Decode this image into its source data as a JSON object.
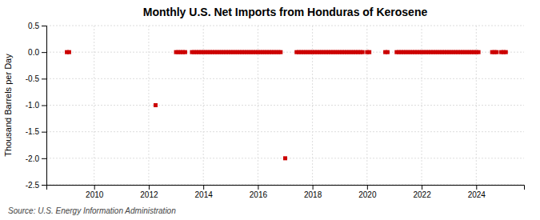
{
  "chart_data": {
    "type": "scatter",
    "title": "Monthly U.S. Net Imports from Honduras of Kerosene",
    "ylabel": "Thousand Barrels per Day",
    "source": "Source: U.S. Energy Information Administration",
    "color": "#cc0000",
    "marker": "square",
    "grid": true,
    "xlim": [
      2008.25,
      2025.75
    ],
    "xticks": [
      2010,
      2012,
      2014,
      2016,
      2018,
      2020,
      2022,
      2024
    ],
    "ylim": [
      -2.5,
      0.5
    ],
    "yticks": [
      0.5,
      {
        "value": 0.0,
        "label": "0.0"
      },
      -0.5,
      {
        "value": -1.0,
        "label": "-1.0"
      },
      -1.5,
      {
        "value": -2.0,
        "label": "-2.0"
      },
      -2.5
    ],
    "x": [
      2009.0,
      2009.083,
      2012.25,
      2013.0,
      2013.083,
      2013.167,
      2013.25,
      2013.333,
      2013.583,
      2013.667,
      2013.75,
      2013.833,
      2013.917,
      2014.0,
      2014.083,
      2014.167,
      2014.25,
      2014.333,
      2014.417,
      2014.5,
      2014.583,
      2014.667,
      2014.75,
      2014.833,
      2014.917,
      2015.0,
      2015.083,
      2015.167,
      2015.25,
      2015.333,
      2015.417,
      2015.5,
      2015.583,
      2015.667,
      2015.75,
      2015.833,
      2015.917,
      2016.0,
      2016.083,
      2016.167,
      2016.25,
      2016.333,
      2016.417,
      2016.5,
      2016.583,
      2016.667,
      2016.75,
      2016.833,
      2017.0,
      2017.417,
      2017.5,
      2017.583,
      2017.667,
      2017.75,
      2017.833,
      2017.917,
      2018.0,
      2018.083,
      2018.167,
      2018.25,
      2018.333,
      2018.417,
      2018.5,
      2018.583,
      2018.667,
      2018.75,
      2018.833,
      2018.917,
      2019.0,
      2019.083,
      2019.167,
      2019.25,
      2019.333,
      2019.417,
      2019.5,
      2019.583,
      2019.667,
      2019.75,
      2019.833,
      2020.0,
      2020.083,
      2020.667,
      2020.75,
      2021.083,
      2021.167,
      2021.25,
      2021.333,
      2021.417,
      2021.5,
      2021.583,
      2021.667,
      2021.75,
      2021.833,
      2021.917,
      2022.0,
      2022.083,
      2022.167,
      2022.25,
      2022.333,
      2022.417,
      2022.5,
      2022.583,
      2022.667,
      2022.75,
      2022.833,
      2022.917,
      2023.0,
      2023.083,
      2023.167,
      2023.25,
      2023.333,
      2023.417,
      2023.5,
      2023.583,
      2023.667,
      2023.75,
      2023.833,
      2023.917,
      2024.0,
      2024.083,
      2024.583,
      2024.667,
      2024.75,
      2024.917,
      2025.0,
      2025.083
    ],
    "values": [
      0.0,
      0.0,
      -1.0,
      0.0,
      0.0,
      0.0,
      0.0,
      0.0,
      0.0,
      0.0,
      0.0,
      0.0,
      0.0,
      0.0,
      0.0,
      0.0,
      0.0,
      0.0,
      0.0,
      0.0,
      0.0,
      0.0,
      0.0,
      0.0,
      0.0,
      0.0,
      0.0,
      0.0,
      0.0,
      0.0,
      0.0,
      0.0,
      0.0,
      0.0,
      0.0,
      0.0,
      0.0,
      0.0,
      0.0,
      0.0,
      0.0,
      0.0,
      0.0,
      0.0,
      0.0,
      0.0,
      0.0,
      0.0,
      -2.0,
      0.0,
      0.0,
      0.0,
      0.0,
      0.0,
      0.0,
      0.0,
      0.0,
      0.0,
      0.0,
      0.0,
      0.0,
      0.0,
      0.0,
      0.0,
      0.0,
      0.0,
      0.0,
      0.0,
      0.0,
      0.0,
      0.0,
      0.0,
      0.0,
      0.0,
      0.0,
      0.0,
      0.0,
      0.0,
      0.0,
      0.0,
      0.0,
      0.0,
      0.0,
      0.0,
      0.0,
      0.0,
      0.0,
      0.0,
      0.0,
      0.0,
      0.0,
      0.0,
      0.0,
      0.0,
      0.0,
      0.0,
      0.0,
      0.0,
      0.0,
      0.0,
      0.0,
      0.0,
      0.0,
      0.0,
      0.0,
      0.0,
      0.0,
      0.0,
      0.0,
      0.0,
      0.0,
      0.0,
      0.0,
      0.0,
      0.0,
      0.0,
      0.0,
      0.0,
      0.0,
      0.0,
      0.0,
      0.0,
      0.0,
      0.0,
      0.0,
      0.0
    ]
  }
}
